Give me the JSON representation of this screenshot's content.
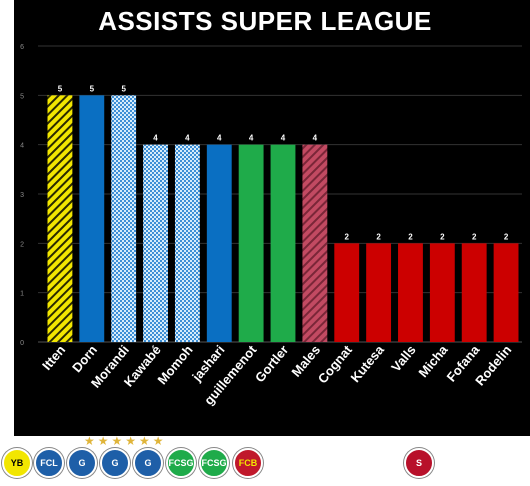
{
  "chart_data": {
    "type": "bar",
    "title": "ASSISTS SUPER LEAGUE",
    "ylim": [
      0,
      6
    ],
    "yticks": [
      0,
      1,
      2,
      3,
      4,
      5,
      6
    ],
    "grid": true,
    "categories": [
      "Itten",
      "Dorn",
      "Morandi",
      "Kawabé",
      "Momoh",
      "jashari",
      "guillemenot",
      "Gortler",
      "Males",
      "Cognat",
      "Kutesa",
      "Valls",
      "Micha",
      "Fofana",
      "Rodelin"
    ],
    "values": [
      5,
      5,
      5,
      4,
      4,
      4,
      4,
      4,
      4,
      2,
      2,
      2,
      2,
      2,
      2
    ],
    "data_labels": [
      "5",
      "5",
      "5",
      "4",
      "4",
      "4",
      "4",
      "4",
      "4",
      "2",
      "2",
      "2",
      "2",
      "2",
      "2"
    ],
    "bar_styles": [
      {
        "fill": "#f2e600",
        "pattern": "hatch"
      },
      {
        "fill": "#0a6fc2",
        "pattern": "solid"
      },
      {
        "fill": "#9fd0f5",
        "pattern": "check"
      },
      {
        "fill": "#9fd0f5",
        "pattern": "check"
      },
      {
        "fill": "#9fd0f5",
        "pattern": "check"
      },
      {
        "fill": "#0a6fc2",
        "pattern": "solid"
      },
      {
        "fill": "#1fab4a",
        "pattern": "solid"
      },
      {
        "fill": "#1fab4a",
        "pattern": "solid"
      },
      {
        "fill": "#b5435a",
        "pattern": "hatch"
      },
      {
        "fill": "#cc0000",
        "pattern": "solid"
      },
      {
        "fill": "#cc0000",
        "pattern": "solid"
      },
      {
        "fill": "#cc0000",
        "pattern": "solid"
      },
      {
        "fill": "#cc0000",
        "pattern": "solid"
      },
      {
        "fill": "#cc0000",
        "pattern": "solid"
      },
      {
        "fill": "#cc0000",
        "pattern": "solid"
      }
    ],
    "stray_tick_label": "1"
  },
  "logos": {
    "items": [
      {
        "name": "yb-logo",
        "text": "YB",
        "color": "#f2e600",
        "fg": "#000000"
      },
      {
        "name": "fcl-logo",
        "text": "FCL",
        "color": "#1e5fa8",
        "fg": "#ffffff"
      },
      {
        "name": "gc-logo-1",
        "text": "G",
        "color": "#1e5fa8",
        "fg": "#ffffff"
      },
      {
        "name": "gc-logo-2",
        "text": "G",
        "color": "#1e5fa8",
        "fg": "#ffffff"
      },
      {
        "name": "gc-logo-3",
        "text": "G",
        "color": "#1e5fa8",
        "fg": "#ffffff"
      },
      {
        "name": "fcsg-logo-1",
        "text": "FCSG",
        "color": "#1fab4a",
        "fg": "#ffffff"
      },
      {
        "name": "fcsg-logo-2",
        "text": "FCSG",
        "color": "#1fab4a",
        "fg": "#ffffff"
      },
      {
        "name": "fcb-logo",
        "text": "FCB",
        "color": "#c0182b",
        "fg": "#f2e600"
      },
      {
        "name": "sfc-logo",
        "text": "S",
        "color": "#b8102a",
        "fg": "#ffffff"
      }
    ],
    "stars": "★★★★★★"
  }
}
